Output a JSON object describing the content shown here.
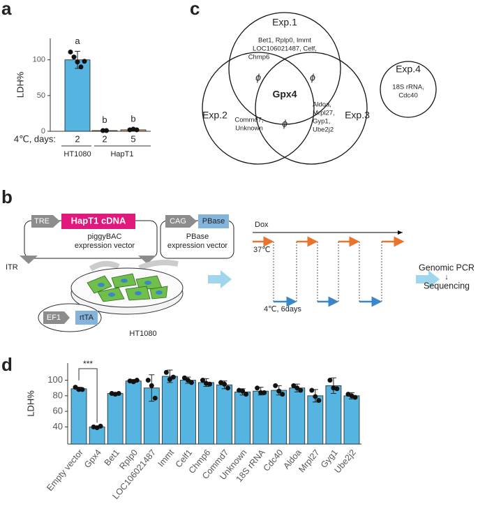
{
  "panels": [
    "a",
    "b",
    "c",
    "d"
  ],
  "chart_data": [
    {
      "type": "bar",
      "y_label": "LDH%",
      "x_row_label": "4℃, days:",
      "groups": [
        "HT1080",
        "HapT1"
      ],
      "categories": [
        "2",
        "2",
        "5"
      ],
      "values": [
        100,
        1,
        2
      ],
      "errors": [
        12,
        0.5,
        1
      ],
      "points": [
        [
          111,
          104,
          97,
          90,
          98
        ],
        [
          1,
          1
        ],
        [
          2,
          3,
          2
        ]
      ],
      "annotations": [
        "a",
        "b",
        "b"
      ],
      "colors": [
        "#56b4e0",
        "#e0a060",
        "#e0a060"
      ],
      "ylim": [
        0,
        130
      ],
      "yticks": [
        0,
        50,
        100
      ],
      "grid": false
    },
    {
      "type": "bar",
      "y_label": "LDH%",
      "categories": [
        "Empty vector",
        "Gpx4",
        "Bet1",
        "Rplp0",
        "LOC106021487",
        "Immt",
        "Celf1",
        "Chmp6",
        "Commd7",
        "Unknown",
        "18S rRNA",
        "Cdc40",
        "Aldoa",
        "Mrpl27",
        "Gyg1",
        "Ube2j2"
      ],
      "values": [
        89,
        40,
        83,
        99,
        90,
        105,
        100,
        97,
        94,
        85,
        86,
        87,
        90,
        80,
        93,
        80
      ],
      "errors": [
        2,
        1,
        1,
        2,
        17,
        8,
        4,
        5,
        5,
        4,
        5,
        6,
        5,
        8,
        10,
        4
      ],
      "points": [
        [
          91,
          88,
          88
        ],
        [
          40,
          39,
          41
        ],
        [
          83,
          82,
          83
        ],
        [
          99,
          98,
          100
        ],
        [
          100,
          93,
          77
        ],
        [
          110,
          101,
          104
        ],
        [
          103,
          100,
          97
        ],
        [
          100,
          96,
          95
        ],
        [
          97,
          95,
          90
        ],
        [
          87,
          86,
          82
        ],
        [
          90,
          84,
          84
        ],
        [
          93,
          86,
          82
        ],
        [
          93,
          90,
          87
        ],
        [
          87,
          79,
          74
        ],
        [
          100,
          90,
          89
        ],
        [
          82,
          80,
          78
        ]
      ],
      "significance": "***",
      "color": "#56b4e0",
      "ylim": [
        18,
        122
      ],
      "yticks": [
        40,
        60,
        80,
        100
      ],
      "grid": false
    }
  ],
  "venn": {
    "sets": [
      {
        "name": "Exp.1",
        "genes": [
          "Bet1, Rplp0, Immt",
          "LOC106021487, Celf,",
          "Chmp6"
        ]
      },
      {
        "name": "Exp.2",
        "genes": [
          "Commd7,",
          "Unknown"
        ]
      },
      {
        "name": "Exp.3",
        "genes": [
          "Aldoa,",
          "Mrpl27,",
          "Gyp1,",
          "Ube2j2"
        ]
      },
      {
        "name": "Exp.4",
        "genes": [
          "18S rRNA,",
          "Cdc40"
        ]
      }
    ],
    "intersections": [
      "ϕ",
      "ϕ",
      "ϕ"
    ],
    "center": "Gpx4"
  },
  "schematic": {
    "tre": "TRE",
    "cdna": "HapT1 cDNA",
    "vector1": [
      "piggyBAC",
      "expression vector"
    ],
    "itr": "ITR",
    "cag": "CAG",
    "pbase": "PBase",
    "vector2": [
      "PBase",
      "expression vector"
    ],
    "ef1": "EF1",
    "rtta": "rtTA",
    "cells": "HT1080",
    "dox": "Dox",
    "warm": "37℃",
    "cold": "4℃, 6days",
    "output": [
      "Genomic PCR",
      "↓",
      "Sequencing"
    ]
  }
}
